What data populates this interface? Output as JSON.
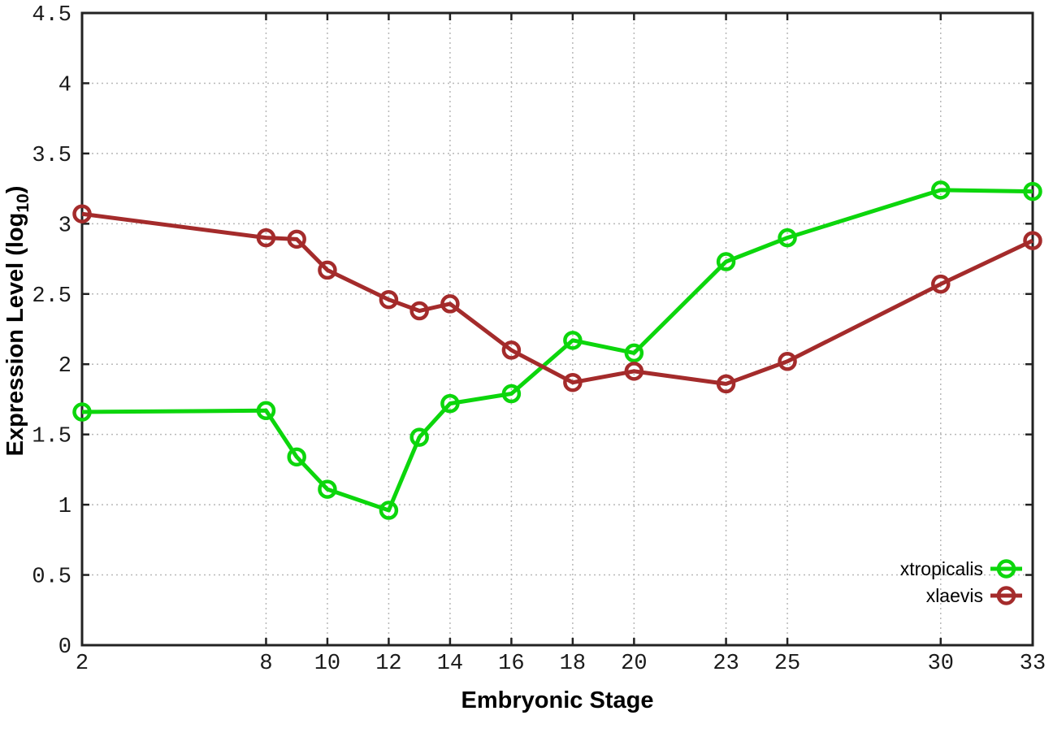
{
  "chart_data": {
    "type": "line",
    "title": "",
    "xlabel": "Embryonic Stage",
    "ylabel": "Expression Level (log10)",
    "ylabel_rich": {
      "main": "Expression Level (log",
      "sub": "10",
      "close": ")"
    },
    "x": [
      2,
      8,
      9,
      10,
      12,
      13,
      14,
      16,
      18,
      20,
      23,
      25,
      30,
      33
    ],
    "series": [
      {
        "name": "xtropicalis",
        "color": "#0cd60c",
        "values": [
          1.66,
          1.67,
          1.34,
          1.11,
          0.96,
          1.48,
          1.72,
          1.79,
          2.17,
          2.08,
          2.73,
          2.9,
          3.24,
          3.23
        ]
      },
      {
        "name": "xlaevis",
        "color": "#a42b2b",
        "values": [
          3.07,
          2.9,
          2.89,
          2.67,
          2.46,
          2.38,
          2.43,
          2.1,
          1.87,
          1.95,
          1.86,
          2.02,
          2.57,
          2.88
        ]
      }
    ],
    "xlim": [
      2,
      33
    ],
    "ylim": [
      0,
      4.5
    ],
    "xticks": [
      2,
      8,
      10,
      12,
      14,
      16,
      18,
      20,
      23,
      25,
      30,
      33
    ],
    "yticks": [
      0,
      0.5,
      1,
      1.5,
      2,
      2.5,
      3,
      3.5,
      4,
      4.5
    ],
    "ytick_labels": [
      "0",
      "0.5",
      "1",
      "1.5",
      "2",
      "2.5",
      "3",
      "3.5",
      "4",
      "4.5"
    ],
    "grid": true,
    "marker": "open-circle",
    "legend": {
      "position": "bottom-right",
      "entries": [
        "xtropicalis",
        "xlaevis"
      ]
    },
    "colors": {
      "background": "#ffffff",
      "grid": "#b8b8b8",
      "axis": "#222222"
    }
  }
}
